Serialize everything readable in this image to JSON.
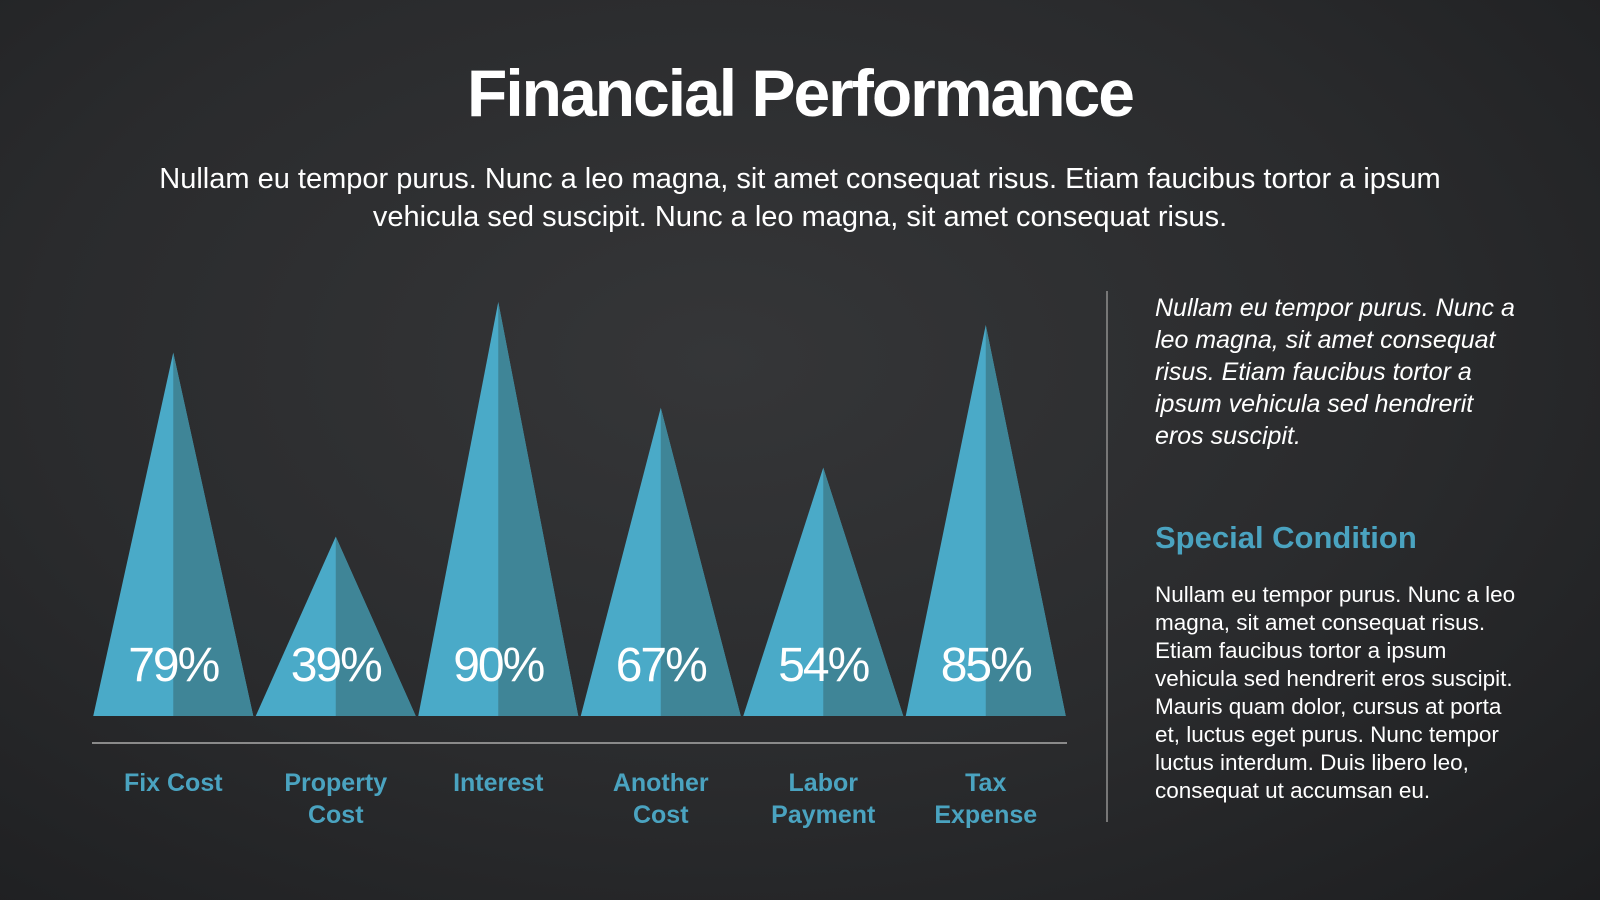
{
  "title": "Financial Performance",
  "subtitle": "Nullam eu tempor purus. Nunc a leo magna, sit amet consequat risus. Etiam faucibus tortor a ipsum vehicula sed suscipit. Nunc a leo magna, sit amet consequat risus.",
  "chart_data": {
    "type": "pyramid",
    "categories": [
      "Fix Cost",
      "Property Cost",
      "Interest",
      "Another Cost",
      "Labor Payment",
      "Tax Expense"
    ],
    "values": [
      79,
      39,
      90,
      67,
      54,
      85
    ],
    "value_labels": [
      "79%",
      "39%",
      "90%",
      "67%",
      "54%",
      "85%"
    ],
    "color": "#4aaac8",
    "shade_color": "#3f8597",
    "label_color": "#4aa3c0"
  },
  "sidebar": {
    "quote": "Nullam eu tempor purus. Nunc a leo magna, sit amet consequat risus. Etiam faucibus tortor a ipsum vehicula sed hendrerit eros suscipit.",
    "heading": "Special Condition",
    "body": "Nullam eu tempor purus. Nunc a leo magna, sit amet consequat risus. Etiam faucibus tortor a ipsum vehicula sed hendrerit eros suscipit. Mauris quam dolor, cursus at porta et, luctus eget purus. Nunc tempor luctus interdum. Duis libero leo, consequat ut accumsan eu."
  }
}
